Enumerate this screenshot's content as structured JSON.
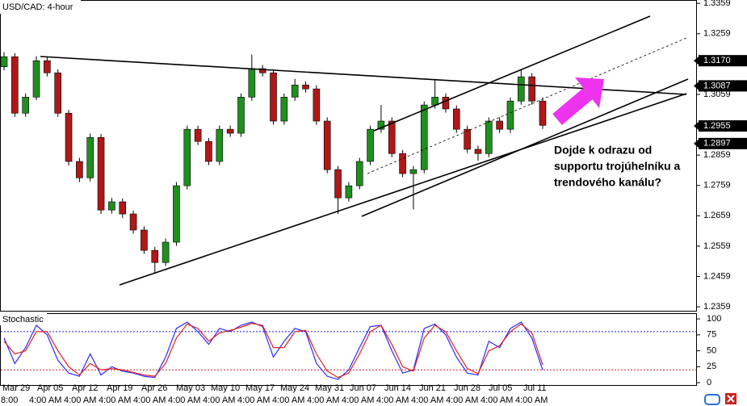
{
  "chart_data": {
    "type": "candlestick",
    "title": "USD/CAD: 4-hour",
    "up_color": "#1f8f1f",
    "down_color": "#b01818",
    "open": [
      1.315,
      1.3183,
      1.2997,
      1.305,
      1.317,
      1.313,
      1.2997,
      1.2838,
      1.2784,
      1.2917,
      1.2678,
      1.2705,
      1.2665,
      1.2612,
      1.2545,
      1.2505,
      1.2572,
      1.2758,
      1.2944,
      1.2904,
      1.2838,
      1.2944,
      1.2931,
      1.305,
      1.3144,
      1.313,
      1.2971,
      1.305,
      1.309,
      1.3077,
      1.2971,
      1.2811,
      1.2718,
      1.2758,
      1.2838,
      1.2944,
      1.2971,
      1.2864,
      1.2798,
      1.2811,
      1.3024,
      1.305,
      1.3011,
      1.2944,
      1.2878,
      1.2864,
      1.2971,
      1.2944,
      1.3037,
      1.3117,
      1.3037
    ],
    "high": [
      1.3198,
      1.3195,
      1.3062,
      1.3185,
      1.3182,
      1.3142,
      1.3008,
      1.285,
      1.293,
      1.2928,
      1.2718,
      1.2716,
      1.2676,
      1.2624,
      1.2556,
      1.2584,
      1.277,
      1.2956,
      1.2956,
      1.2915,
      1.2956,
      1.2956,
      1.3062,
      1.319,
      1.3156,
      1.3142,
      1.3062,
      1.311,
      1.3102,
      1.3089,
      1.2983,
      1.2823,
      1.277,
      1.285,
      1.2956,
      1.3024,
      1.2983,
      1.2876,
      1.2823,
      1.3036,
      1.311,
      1.3062,
      1.3023,
      1.2956,
      1.289,
      1.2983,
      1.2983,
      1.3049,
      1.314,
      1.3129,
      1.3049
    ],
    "low": [
      1.3138,
      1.2985,
      1.2985,
      1.304,
      1.3118,
      1.2985,
      1.2825,
      1.277,
      1.2772,
      1.2665,
      1.2666,
      1.2652,
      1.26,
      1.2533,
      1.247,
      1.2494,
      1.256,
      1.2746,
      1.2892,
      1.2826,
      1.2826,
      1.2919,
      1.2919,
      1.3038,
      1.3118,
      1.2959,
      1.2959,
      1.3038,
      1.3065,
      1.2959,
      1.2799,
      1.2665,
      1.2706,
      1.2746,
      1.2826,
      1.2932,
      1.2852,
      1.2786,
      1.268,
      1.2799,
      1.3012,
      1.2999,
      1.2932,
      1.2866,
      1.284,
      1.2852,
      1.2932,
      1.2932,
      1.3025,
      1.3025,
      1.2945
    ],
    "close": [
      1.3183,
      1.2997,
      1.305,
      1.317,
      1.313,
      1.2997,
      1.2838,
      1.2784,
      1.2917,
      1.2678,
      1.2705,
      1.2665,
      1.2612,
      1.2545,
      1.2505,
      1.2572,
      1.2758,
      1.2944,
      1.2904,
      1.2838,
      1.2944,
      1.2931,
      1.305,
      1.3144,
      1.313,
      1.2971,
      1.305,
      1.309,
      1.3077,
      1.2971,
      1.2811,
      1.2718,
      1.2758,
      1.2838,
      1.2944,
      1.2971,
      1.2864,
      1.2798,
      1.2811,
      1.3024,
      1.305,
      1.3011,
      1.2944,
      1.2878,
      1.2864,
      1.2971,
      1.2944,
      1.3037,
      1.3117,
      1.3037,
      1.2957
    ],
    "ylim": [
      1.2346,
      1.337
    ],
    "yticks": [
      1.3359,
      1.3259,
      1.3059,
      1.2859,
      1.2759,
      1.2659,
      1.2559,
      1.2459,
      1.2359
    ],
    "price_markers": [
      {
        "value": 1.317,
        "label": "1.3170"
      },
      {
        "value": 1.3087,
        "label": "1.3087"
      },
      1.2955,
      1.2897
    ],
    "annotation": [
      "Dojde k odrazu od",
      "supportu trojúhelníku a",
      "trendového kanálu?"
    ],
    "dates": [
      "Mar 29",
      "Apr 05",
      "Apr 12",
      "Apr 19",
      "Apr 26",
      "May 03",
      "May 10",
      "May 17",
      "May 24",
      "May 31",
      "Jun 07",
      "Jun 14",
      "Jun 21",
      "Jun 28",
      "Jul 05",
      "Jul 11"
    ],
    "times": [
      "8:00",
      "4:00 AM",
      "4:00 AM",
      "4:00 AM",
      "4:00 AM",
      "4:00 AM",
      "4:00 AM",
      "4:00 AM",
      "4:00 AM",
      "4:00 AM",
      "4:00 AM",
      "4:00 AM",
      "4:00 AM",
      "4:00 AM",
      "4:00 AM",
      "4:00 AM"
    ],
    "stochastic": {
      "title": "Stochastic",
      "ylim": [
        -5,
        109
      ],
      "yticks": [
        100,
        75,
        50,
        25,
        0
      ],
      "levels": [
        {
          "value": 80,
          "color": "#2222cc"
        },
        {
          "value": 20,
          "color": "#cc2222"
        }
      ],
      "series": [
        {
          "color": "#2a2aff",
          "values": [
            70,
            30,
            55,
            90,
            75,
            35,
            15,
            10,
            45,
            12,
            25,
            18,
            15,
            10,
            8,
            40,
            85,
            95,
            80,
            60,
            85,
            80,
            90,
            95,
            88,
            40,
            65,
            85,
            80,
            30,
            10,
            5,
            20,
            55,
            88,
            90,
            50,
            15,
            20,
            85,
            92,
            75,
            40,
            15,
            12,
            65,
            55,
            85,
            95,
            70,
            20
          ]
        },
        {
          "color": "#e02020",
          "values": [
            65,
            45,
            50,
            80,
            80,
            50,
            25,
            12,
            30,
            20,
            22,
            20,
            16,
            12,
            10,
            30,
            70,
            92,
            85,
            65,
            78,
            82,
            87,
            93,
            90,
            55,
            55,
            80,
            82,
            45,
            18,
            8,
            15,
            45,
            80,
            90,
            60,
            25,
            18,
            70,
            90,
            80,
            50,
            22,
            14,
            50,
            58,
            80,
            92,
            78,
            28
          ]
        }
      ]
    }
  }
}
